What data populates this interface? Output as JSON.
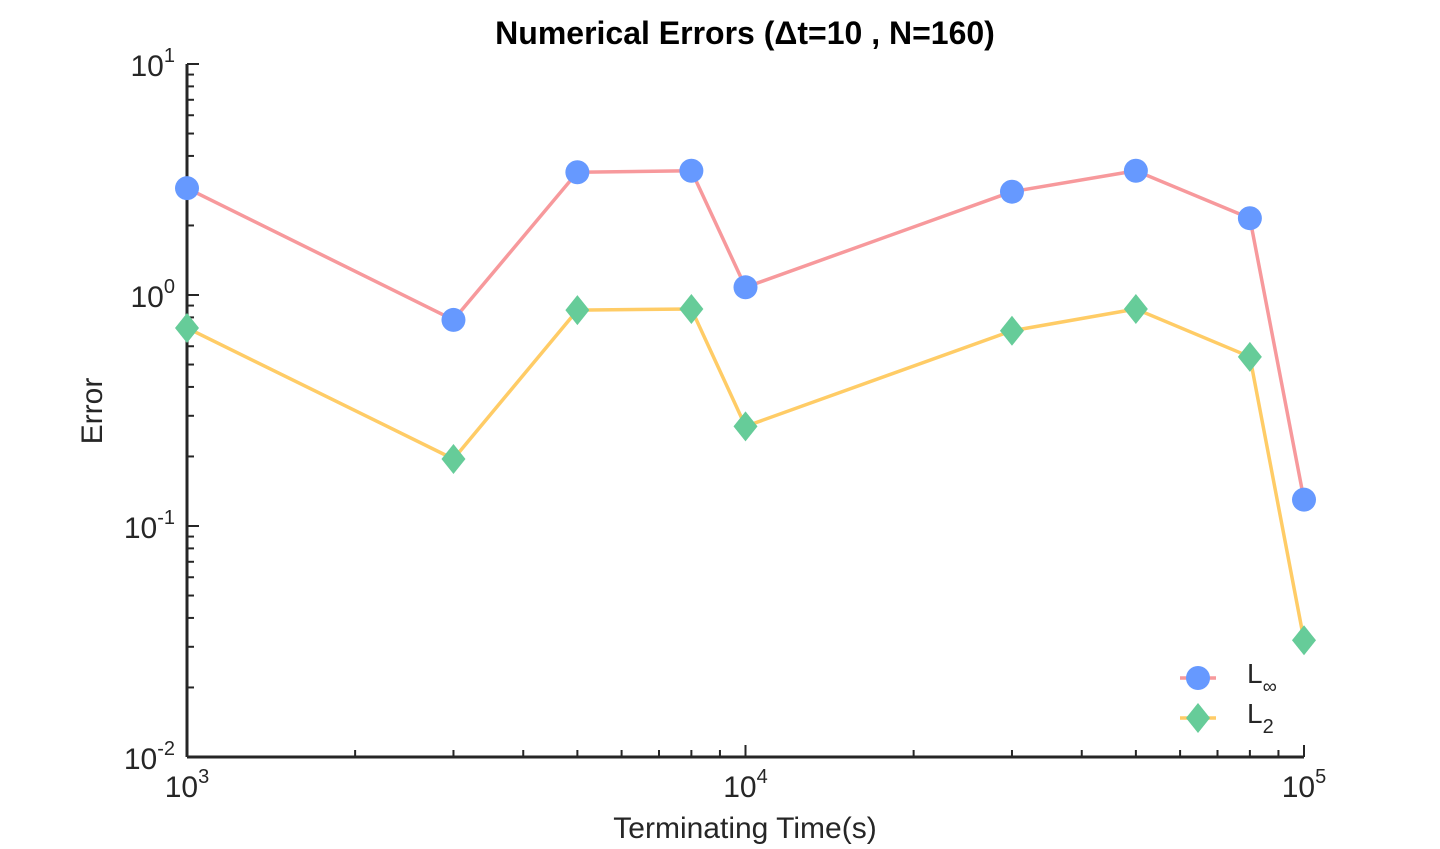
{
  "chart_data": {
    "type": "line",
    "title": "Numerical Errors (Δt=10 , N=160)",
    "xlabel": "Terminating Time(s)",
    "ylabel": "Error",
    "xscale": "log",
    "yscale": "log",
    "xlim": [
      1000,
      100000
    ],
    "ylim": [
      0.01,
      10
    ],
    "xticks": [
      {
        "value": 1000,
        "base": "10",
        "exp": "3"
      },
      {
        "value": 10000,
        "base": "10",
        "exp": "4"
      },
      {
        "value": 100000,
        "base": "10",
        "exp": "5"
      }
    ],
    "yticks": [
      {
        "value": 0.01,
        "base": "10",
        "exp": "-2"
      },
      {
        "value": 0.1,
        "base": "10",
        "exp": "-1"
      },
      {
        "value": 1,
        "base": "10",
        "exp": "0"
      },
      {
        "value": 10,
        "base": "10",
        "exp": "1"
      }
    ],
    "x": [
      1000,
      3000,
      5000,
      8000,
      10000,
      30000,
      50000,
      80000,
      100000
    ],
    "series": [
      {
        "name": "L∞",
        "legend_base": "L",
        "legend_sub": "∞",
        "values": [
          2.9,
          0.78,
          3.4,
          3.45,
          1.08,
          2.8,
          3.45,
          2.15,
          0.13
        ],
        "line_color": "#f7999c",
        "marker_color": "#6699ff",
        "marker": "circle"
      },
      {
        "name": "L2",
        "legend_base": "L",
        "legend_sub": "2",
        "values": [
          0.72,
          0.195,
          0.86,
          0.87,
          0.27,
          0.7,
          0.87,
          0.54,
          0.032
        ],
        "line_color": "#ffcc66",
        "marker_color": "#66cc99",
        "marker": "diamond"
      }
    ],
    "grid": false,
    "legend_position": "bottom-right"
  }
}
